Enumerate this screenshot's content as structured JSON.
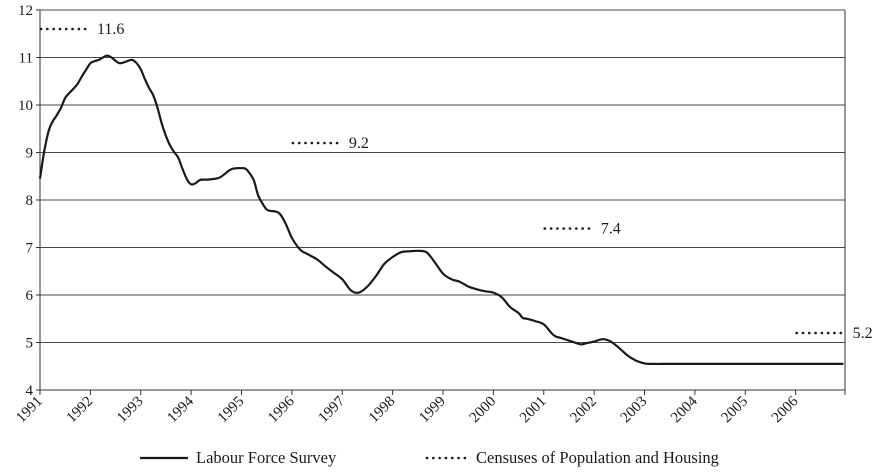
{
  "chart_data": {
    "type": "line",
    "title": "",
    "xlabel": "",
    "ylabel": "",
    "xlim": [
      1991,
      2006.98
    ],
    "ylim": [
      4,
      12
    ],
    "grid": "horizontal",
    "legend_position": "bottom",
    "x_tick_labels": [
      "1991",
      "1992",
      "1993",
      "1994",
      "1995",
      "1996",
      "1997",
      "1998",
      "1999",
      "2000",
      "2001",
      "2002",
      "2003",
      "2004",
      "2005",
      "2006"
    ],
    "y_tick_labels": [
      "4",
      "5",
      "6",
      "7",
      "8",
      "9",
      "10",
      "11",
      "12"
    ],
    "series": [
      {
        "name": "Labour Force Survey",
        "style": "solid",
        "color": "#1a1a1a",
        "x": [
          1991.0,
          1991.08,
          1991.17,
          1991.25,
          1991.33,
          1991.42,
          1991.5,
          1991.58,
          1991.67,
          1991.75,
          1991.83,
          1991.92,
          1992.0,
          1992.08,
          1992.17,
          1992.25,
          1992.33,
          1992.42,
          1992.5,
          1992.58,
          1992.67,
          1992.75,
          1992.83,
          1992.92,
          1993.0,
          1993.08,
          1993.17,
          1993.25,
          1993.33,
          1993.42,
          1993.5,
          1993.58,
          1993.67,
          1993.75,
          1993.83,
          1993.92,
          1994.0,
          1994.08,
          1994.17,
          1994.25,
          1994.33,
          1994.42,
          1994.5,
          1994.58,
          1994.67,
          1994.75,
          1994.83,
          1994.92,
          1995.0,
          1995.08,
          1995.17,
          1995.25,
          1995.33,
          1995.42,
          1995.5,
          1995.58,
          1995.67,
          1995.75,
          1995.83,
          1995.92,
          1996.0,
          1996.17,
          1996.33,
          1996.5,
          1996.67,
          1996.83,
          1997.0,
          1997.17,
          1997.33,
          1997.5,
          1997.67,
          1997.83,
          1998.0,
          1998.17,
          1998.33,
          1998.5,
          1998.67,
          1998.83,
          1999.0,
          1999.17,
          1999.33,
          1999.5,
          1999.67,
          1999.83,
          2000.0,
          2000.17,
          2000.33,
          2000.5,
          2000.58,
          2000.67,
          2000.83,
          2001.0,
          2001.17,
          2001.25,
          2001.33,
          2001.5,
          2001.67,
          2001.75,
          2001.83,
          2002.0,
          2002.17,
          2002.33,
          2002.5,
          2002.67,
          2002.83,
          2003.0,
          2003.17,
          2003.33,
          2003.5,
          2003.67,
          2003.83,
          2004.0,
          2004.17,
          2004.33,
          2004.5,
          2004.67,
          2004.83,
          2005.0,
          2005.17,
          2005.33,
          2005.5,
          2005.67,
          2005.83,
          2006.0,
          2006.17,
          2006.33,
          2006.5,
          2006.67,
          2006.83,
          2006.95
        ],
        "y": [
          8.45,
          9.0,
          9.45,
          9.65,
          9.78,
          9.95,
          10.15,
          10.25,
          10.35,
          10.45,
          10.6,
          10.75,
          10.88,
          10.92,
          10.95,
          11.0,
          11.04,
          11.0,
          10.93,
          10.88,
          10.9,
          10.93,
          10.95,
          10.88,
          10.75,
          10.55,
          10.35,
          10.2,
          9.95,
          9.6,
          9.35,
          9.15,
          9.0,
          8.88,
          8.65,
          8.43,
          8.33,
          8.35,
          8.42,
          8.43,
          8.43,
          8.44,
          8.45,
          8.48,
          8.55,
          8.62,
          8.66,
          8.67,
          8.67,
          8.66,
          8.55,
          8.4,
          8.1,
          7.92,
          7.8,
          7.77,
          7.76,
          7.72,
          7.6,
          7.4,
          7.2,
          6.95,
          6.85,
          6.75,
          6.6,
          6.47,
          6.33,
          6.1,
          6.05,
          6.18,
          6.4,
          6.65,
          6.8,
          6.9,
          6.92,
          6.93,
          6.9,
          6.7,
          6.45,
          6.33,
          6.28,
          6.18,
          6.12,
          6.08,
          6.05,
          5.95,
          5.75,
          5.62,
          5.52,
          5.5,
          5.45,
          5.38,
          5.18,
          5.12,
          5.1,
          5.04,
          4.98,
          4.96,
          4.98,
          5.02,
          5.07,
          5.02,
          4.88,
          4.72,
          4.62,
          4.56,
          4.55,
          4.55,
          4.55,
          4.55,
          4.55,
          4.55,
          4.55,
          4.55,
          4.55,
          4.55,
          4.55,
          4.55,
          4.55,
          4.55,
          4.55,
          4.55,
          4.55,
          4.55,
          4.55,
          4.55,
          4.55,
          4.55,
          4.55,
          4.55
        ]
      },
      {
        "name": "Censuses of Population and Housing",
        "style": "dotted",
        "color": "#1a1a1a",
        "points": [
          {
            "x": 1991,
            "y": 11.6,
            "label": "11.6"
          },
          {
            "x": 1996,
            "y": 9.2,
            "label": "9.2"
          },
          {
            "x": 2001,
            "y": 7.4,
            "label": "7.4"
          },
          {
            "x": 2006,
            "y": 5.2,
            "label": "5.2"
          }
        ]
      }
    ]
  }
}
